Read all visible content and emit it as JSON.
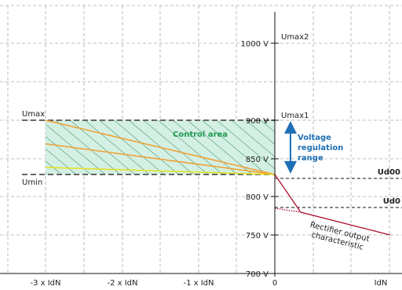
{
  "y_axis": {
    "ticks": [
      "1000 V",
      "900 V",
      "850 V",
      "800 V",
      "750 V",
      "700 V"
    ]
  },
  "x_axis": {
    "ticks": [
      "-3 x IdN",
      "-2 x IdN",
      "-1 x IdN",
      "0",
      "IdN"
    ]
  },
  "labels": {
    "umax": "Umax",
    "umin": "Umin",
    "umax1": "Umax1",
    "umax2": "Umax2",
    "control_area": "Control area",
    "voltage_range": [
      "Voltage",
      "regulation",
      "range"
    ],
    "ud00": "Ud00",
    "ud0": "Ud0",
    "rectifier": [
      "Rectifier output",
      "characteristic"
    ]
  }
}
